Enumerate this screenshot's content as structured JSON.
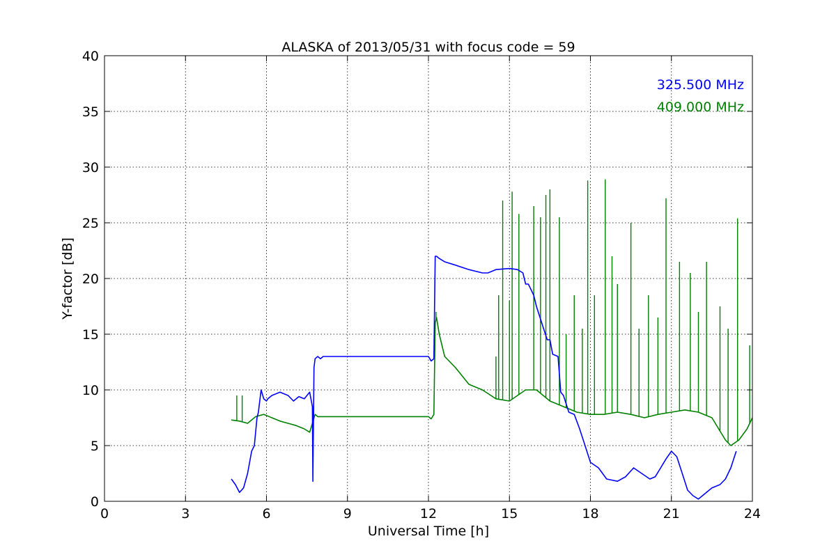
{
  "chart_data": {
    "type": "line",
    "title": "ALASKA of 2013/05/31 with focus code = 59",
    "xlabel": "Universal Time [h]",
    "ylabel": "Y-factor [dB]",
    "xlim": [
      0,
      24
    ],
    "ylim": [
      0,
      40
    ],
    "xticks": [
      0,
      3,
      6,
      9,
      12,
      15,
      18,
      21,
      24
    ],
    "yticks": [
      0,
      5,
      10,
      15,
      20,
      25,
      30,
      35,
      40
    ],
    "grid": true,
    "legend_position": "top-right",
    "series": [
      {
        "name": "325.500 MHz",
        "color": "#0000ff",
        "x": [
          4.7,
          4.85,
          5.0,
          5.15,
          5.3,
          5.45,
          5.55,
          5.65,
          5.7,
          5.8,
          5.9,
          6.0,
          6.05,
          6.2,
          6.5,
          6.8,
          7.0,
          7.2,
          7.4,
          7.6,
          7.7,
          7.72,
          7.76,
          7.8,
          7.9,
          8.0,
          8.1,
          9.0,
          10.0,
          11.0,
          12.0,
          12.1,
          12.2,
          12.25,
          12.3,
          12.4,
          12.6,
          13.0,
          13.5,
          14.0,
          14.2,
          14.5,
          15.0,
          15.3,
          15.5,
          15.6,
          15.7,
          15.9,
          16.0,
          16.2,
          16.4,
          16.5,
          16.6,
          16.8,
          16.9,
          17.0,
          17.2,
          17.4,
          17.6,
          17.8,
          18.0,
          18.3,
          18.6,
          19.0,
          19.3,
          19.6,
          19.9,
          20.2,
          20.4,
          20.6,
          20.8,
          21.0,
          21.2,
          21.4,
          21.6,
          21.8,
          22.0,
          22.2,
          22.5,
          22.8,
          23.0,
          23.2,
          23.4
        ],
        "y": [
          2.0,
          1.5,
          0.8,
          1.2,
          2.5,
          4.5,
          5.0,
          7.5,
          8.0,
          10.0,
          9.2,
          9.0,
          9.2,
          9.5,
          9.8,
          9.5,
          9.0,
          9.4,
          9.2,
          9.8,
          8.5,
          1.8,
          12.0,
          12.8,
          13.0,
          12.8,
          13.0,
          13.0,
          13.0,
          13.0,
          13.0,
          12.6,
          12.8,
          22.0,
          22.0,
          21.8,
          21.5,
          21.2,
          20.8,
          20.5,
          20.5,
          20.8,
          20.9,
          20.8,
          20.5,
          19.5,
          19.5,
          18.5,
          17.5,
          16.0,
          14.5,
          14.5,
          13.2,
          13.0,
          9.8,
          9.5,
          8.0,
          7.8,
          6.5,
          5.0,
          3.5,
          3.0,
          2.0,
          1.8,
          2.2,
          3.0,
          2.5,
          2.0,
          2.2,
          3.0,
          3.8,
          4.5,
          4.0,
          2.5,
          1.0,
          0.5,
          0.2,
          0.6,
          1.2,
          1.5,
          2.0,
          3.0,
          4.5
        ]
      },
      {
        "name": "409.000 MHz",
        "color": "#008000",
        "x": [
          4.7,
          5.0,
          5.3,
          5.6,
          5.9,
          6.2,
          6.5,
          6.8,
          7.1,
          7.4,
          7.6,
          7.7,
          7.8,
          7.9,
          8.0,
          9.0,
          10.0,
          11.0,
          12.0,
          12.1,
          12.2,
          12.25,
          12.3,
          12.4,
          12.6,
          13.0,
          13.5,
          14.0,
          14.5,
          15.0,
          15.3,
          15.6,
          16.0,
          16.5,
          17.0,
          17.5,
          18.0,
          18.5,
          19.0,
          19.5,
          20.0,
          20.5,
          21.0,
          21.5,
          22.0,
          22.5,
          23.0,
          23.2,
          23.5,
          23.8,
          24.0
        ],
        "y": [
          7.3,
          7.2,
          7.0,
          7.6,
          7.8,
          7.5,
          7.2,
          7.0,
          6.8,
          6.5,
          6.2,
          7.0,
          7.8,
          7.6,
          7.6,
          7.6,
          7.6,
          7.6,
          7.6,
          7.4,
          7.8,
          16.0,
          16.5,
          15.0,
          13.0,
          12.0,
          10.5,
          10.0,
          9.2,
          9.0,
          9.5,
          10.0,
          10.0,
          9.0,
          8.5,
          8.0,
          7.8,
          7.8,
          8.0,
          7.8,
          7.5,
          7.8,
          8.0,
          8.2,
          8.0,
          7.5,
          5.5,
          5.0,
          5.5,
          6.5,
          7.5
        ],
        "spikes": [
          {
            "x": 4.9,
            "y": 9.5
          },
          {
            "x": 5.1,
            "y": 9.5
          },
          {
            "x": 7.75,
            "y": 8.8
          },
          {
            "x": 12.28,
            "y": 17.0
          },
          {
            "x": 14.5,
            "y": 13.0
          },
          {
            "x": 14.6,
            "y": 18.5
          },
          {
            "x": 14.75,
            "y": 27.0
          },
          {
            "x": 15.0,
            "y": 18.0
          },
          {
            "x": 15.1,
            "y": 27.8
          },
          {
            "x": 15.35,
            "y": 25.8
          },
          {
            "x": 15.9,
            "y": 26.5
          },
          {
            "x": 16.15,
            "y": 25.5
          },
          {
            "x": 16.35,
            "y": 27.5
          },
          {
            "x": 16.5,
            "y": 28.0
          },
          {
            "x": 16.85,
            "y": 25.5
          },
          {
            "x": 17.1,
            "y": 15.0
          },
          {
            "x": 17.4,
            "y": 18.5
          },
          {
            "x": 17.7,
            "y": 15.5
          },
          {
            "x": 17.9,
            "y": 28.8
          },
          {
            "x": 18.15,
            "y": 18.5
          },
          {
            "x": 18.55,
            "y": 28.9
          },
          {
            "x": 18.8,
            "y": 22.0
          },
          {
            "x": 19.0,
            "y": 19.5
          },
          {
            "x": 19.5,
            "y": 25.0
          },
          {
            "x": 19.8,
            "y": 15.5
          },
          {
            "x": 20.15,
            "y": 18.5
          },
          {
            "x": 20.5,
            "y": 16.5
          },
          {
            "x": 20.8,
            "y": 27.2
          },
          {
            "x": 21.3,
            "y": 21.5
          },
          {
            "x": 21.7,
            "y": 20.5
          },
          {
            "x": 22.0,
            "y": 17.0
          },
          {
            "x": 22.3,
            "y": 21.5
          },
          {
            "x": 22.8,
            "y": 17.5
          },
          {
            "x": 23.1,
            "y": 15.5
          },
          {
            "x": 23.45,
            "y": 25.4
          },
          {
            "x": 23.9,
            "y": 14.0
          }
        ]
      }
    ]
  }
}
